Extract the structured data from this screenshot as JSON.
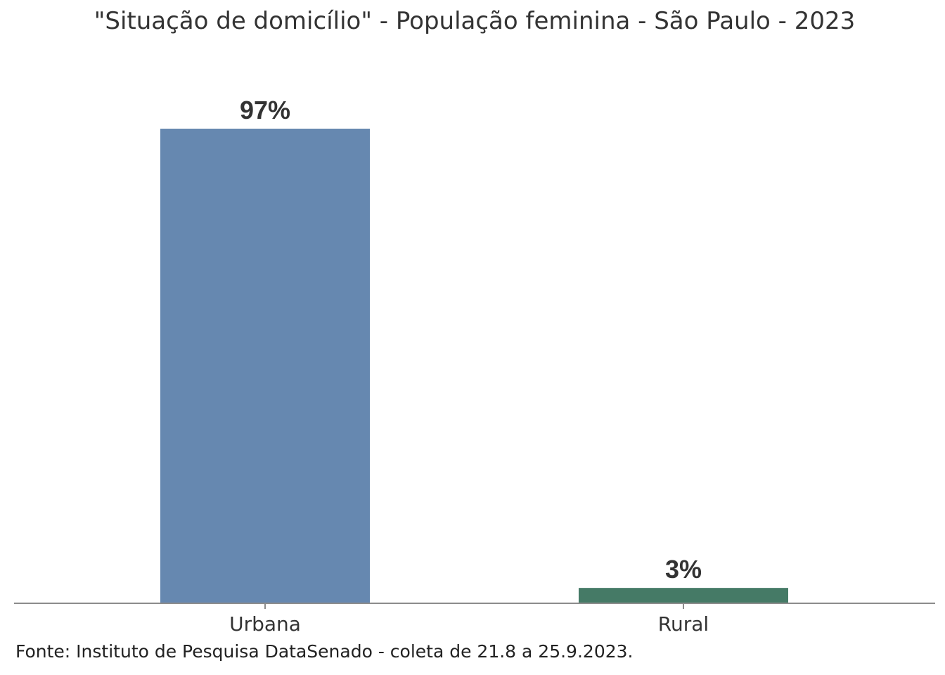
{
  "chart_data": {
    "type": "bar",
    "title": "\"Situação de domicílio\" - População feminina - São Paulo - 2023",
    "categories": [
      "Urbana",
      "Rural"
    ],
    "values": [
      97,
      3
    ],
    "data_labels": [
      "97%",
      "3%"
    ],
    "colors": [
      "#6688b0",
      "#457a66"
    ],
    "ylim": [
      0,
      97
    ],
    "grid": false,
    "legend": "none"
  },
  "source": "Fonte: Instituto de Pesquisa DataSenado - coleta de 21.8 a 25.9.2023."
}
